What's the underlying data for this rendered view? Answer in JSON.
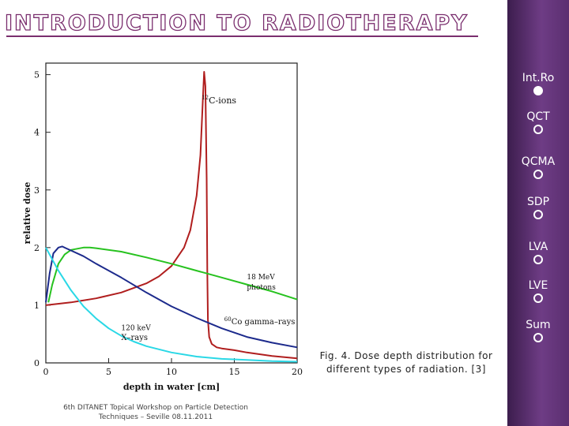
{
  "slide": {
    "title": "INTRODUCTION TO RADIOTHERAPY",
    "caption_line1": "Fig. 4. Dose depth distribution for",
    "caption_line2": "different types of radiation. [3]",
    "footer_line1": "6th DITANET Topical Workshop on Particle Detection",
    "footer_line2": "Techniques – Seville 08.11.2011"
  },
  "nav": {
    "items": [
      {
        "label": "Int.Ro",
        "active": true
      },
      {
        "label": "QCT",
        "active": false
      },
      {
        "label": "QCMA",
        "active": false
      },
      {
        "label": "SDP",
        "active": false
      },
      {
        "label": "LVA",
        "active": false
      },
      {
        "label": "LVE",
        "active": false
      },
      {
        "label": "Sum",
        "active": false
      }
    ]
  },
  "colors": {
    "accent": "#7a2e6e",
    "carbon": "#b01e1e",
    "photons": "#27c21f",
    "cobalt": "#1c2a8c",
    "xrays": "#2ad8e6"
  },
  "chart_data": {
    "type": "line",
    "xlabel": "depth in water [cm]",
    "ylabel": "relative dose",
    "xlim": [
      0,
      20
    ],
    "ylim": [
      0,
      5.2
    ],
    "xticks": [
      0,
      5,
      10,
      15,
      20
    ],
    "yticks": [
      0,
      1,
      2,
      3,
      4,
      5
    ],
    "series": [
      {
        "name": "12C-ions",
        "label_main": "C-ions",
        "label_sup": "12",
        "color": "#b01e1e",
        "x": [
          0,
          2,
          4,
          6,
          8,
          9,
          10,
          11,
          11.5,
          12,
          12.3,
          12.5,
          12.6,
          12.7,
          12.8,
          12.85,
          12.9,
          13.0,
          13.2,
          13.6,
          14,
          15,
          16,
          17,
          18,
          20
        ],
        "y": [
          1.0,
          1.05,
          1.12,
          1.22,
          1.38,
          1.5,
          1.68,
          2.0,
          2.3,
          2.9,
          3.6,
          4.6,
          5.05,
          4.8,
          3.2,
          1.6,
          0.75,
          0.45,
          0.33,
          0.27,
          0.25,
          0.22,
          0.18,
          0.15,
          0.12,
          0.08
        ]
      },
      {
        "name": "18 MeV photons",
        "label_line1": "18 MeV",
        "label_line2": "photons",
        "color": "#27c21f",
        "x": [
          0.2,
          0.5,
          1,
          1.5,
          2,
          3,
          3.5,
          4,
          6,
          8,
          10,
          12,
          14,
          16,
          18,
          20
        ],
        "y": [
          1.05,
          1.35,
          1.72,
          1.88,
          1.96,
          2.0,
          2.0,
          1.99,
          1.93,
          1.83,
          1.72,
          1.6,
          1.48,
          1.36,
          1.24,
          1.1
        ]
      },
      {
        "name": "60Co gamma-rays",
        "label_main": "Co gamma–rays",
        "label_sup": "60",
        "color": "#1c2a8c",
        "x": [
          0,
          0.3,
          0.6,
          1,
          1.3,
          1.6,
          2,
          3,
          4,
          6,
          8,
          10,
          12,
          14,
          16,
          18,
          20
        ],
        "y": [
          1.05,
          1.55,
          1.9,
          2.0,
          2.02,
          1.99,
          1.95,
          1.85,
          1.72,
          1.48,
          1.22,
          0.98,
          0.78,
          0.6,
          0.45,
          0.35,
          0.27
        ]
      },
      {
        "name": "120 keV X-rays",
        "label_line1": "120 keV",
        "label_line2": "X–rays",
        "color": "#2ad8e6",
        "x": [
          0,
          1,
          2,
          3,
          4,
          5,
          6,
          7,
          8,
          10,
          12,
          14,
          16,
          18,
          20
        ],
        "y": [
          2.0,
          1.6,
          1.26,
          0.98,
          0.77,
          0.6,
          0.47,
          0.37,
          0.29,
          0.18,
          0.11,
          0.07,
          0.05,
          0.03,
          0.02
        ]
      }
    ]
  }
}
